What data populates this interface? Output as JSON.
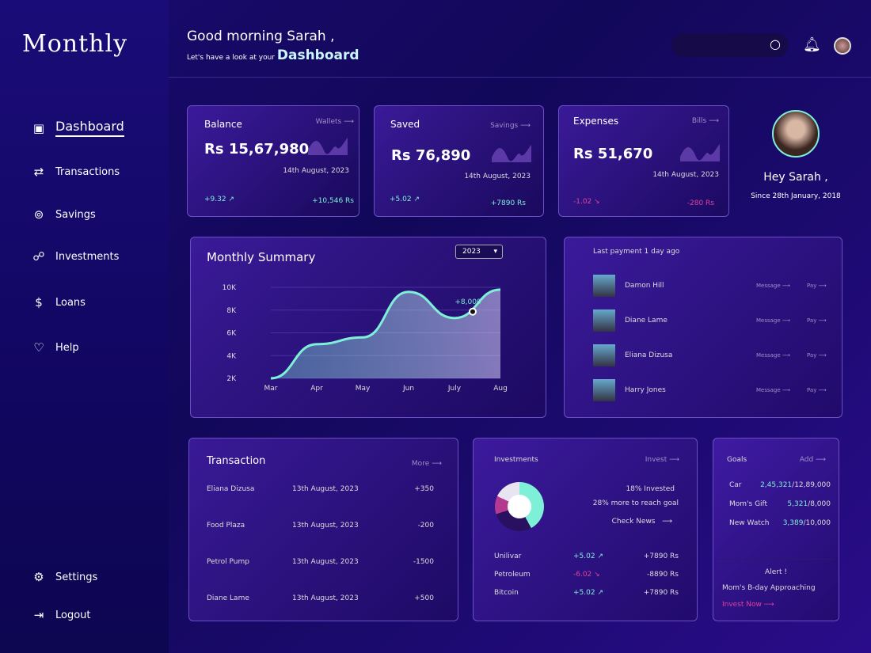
{
  "app": {
    "logo": "Monthly"
  },
  "sidebar": {
    "items": [
      {
        "label": "Dashboard",
        "icon": "dashboard-icon"
      },
      {
        "label": "Transactions",
        "icon": "arrows-icon"
      },
      {
        "label": "Savings",
        "icon": "coins-icon"
      },
      {
        "label": "Investments",
        "icon": "chart-hand-icon"
      },
      {
        "label": "Loans",
        "icon": "money-bag-icon"
      },
      {
        "label": "Help",
        "icon": "heart-handshake-icon"
      }
    ],
    "settings": "Settings",
    "logout": "Logout"
  },
  "header": {
    "greeting": "Good morning Sarah ,",
    "sub": "Let's have a look at your",
    "highlight": "Dashboard"
  },
  "stats": [
    {
      "title": "Balance",
      "link": "Wallets",
      "amount": "Rs 15,67,980",
      "date": "14th August, 2023",
      "change": "+9.32",
      "delta": "+10,546 Rs",
      "trend": "up"
    },
    {
      "title": "Saved",
      "link": "Savings",
      "amount": "Rs 76,890",
      "date": "14th August, 2023",
      "change": "+5.02",
      "delta": "+7890 Rs",
      "trend": "up"
    },
    {
      "title": "Expenses",
      "link": "Bills",
      "amount": "Rs 51,670",
      "date": "14th August, 2023",
      "change": "-1.02",
      "delta": "-280 Rs",
      "trend": "down"
    }
  ],
  "profile": {
    "name": "Hey Sarah ,",
    "since": "Since 28th January, 2018"
  },
  "summary": {
    "title": "Monthly Summary",
    "year": "2023"
  },
  "chart_data": {
    "type": "area",
    "x": [
      "Mar",
      "Apr",
      "May",
      "Jun",
      "July",
      "Aug"
    ],
    "values": [
      2000,
      5000,
      5600,
      9600,
      7300,
      9800
    ],
    "yticks": [
      "10K",
      "8K",
      "6K",
      "4K",
      "2K"
    ],
    "ylim": [
      2000,
      10000
    ],
    "annotation": "+8,000",
    "grid": true
  },
  "payments": {
    "title": "Last payment 1 day ago",
    "message": "Message",
    "pay": "Pay",
    "people": [
      "Damon Hill",
      "Diane Lame",
      "Eliana Dizusa",
      "Harry Jones"
    ]
  },
  "transactions": {
    "title": "Transaction",
    "more": "More",
    "rows": [
      [
        "Eliana Dizusa",
        "13th August, 2023",
        "+350"
      ],
      [
        "Food Plaza",
        "13th August, 2023",
        "-200"
      ],
      [
        "Petrol Pump",
        "13th August, 2023",
        "-1500"
      ],
      [
        "Diane Lame",
        "13th August, 2023",
        "+500"
      ]
    ]
  },
  "investments": {
    "title": "Investments",
    "invest": "Invest",
    "invested": "18% Invested",
    "goal": "28% more to reach goal",
    "news": "Check News",
    "rows": [
      {
        "name": "Unilivar",
        "change": "+5.02",
        "amount": "+7890 Rs",
        "trend": "up"
      },
      {
        "name": "Petroleum",
        "change": "-6.02",
        "amount": "-8890 Rs",
        "trend": "down"
      },
      {
        "name": "Bitcoin",
        "change": "+5.02",
        "amount": "+7890 Rs",
        "trend": "up"
      }
    ]
  },
  "goals": {
    "title": "Goals",
    "add": "Add",
    "rows": [
      {
        "name": "Car",
        "saved": "2,45,321",
        "total": "/12,89,000"
      },
      {
        "name": "Mom's Gift",
        "saved": "5,321",
        "total": "/8,000"
      },
      {
        "name": "New Watch",
        "saved": "3,389",
        "total": "/10,000"
      }
    ],
    "alert": "Alert !",
    "alert_text": "Mom's B-day Approaching",
    "cta": "Invest Now"
  },
  "colors": {
    "accent": "#7ef0d8",
    "negative": "#e0429c",
    "cta": "#e0429c"
  }
}
